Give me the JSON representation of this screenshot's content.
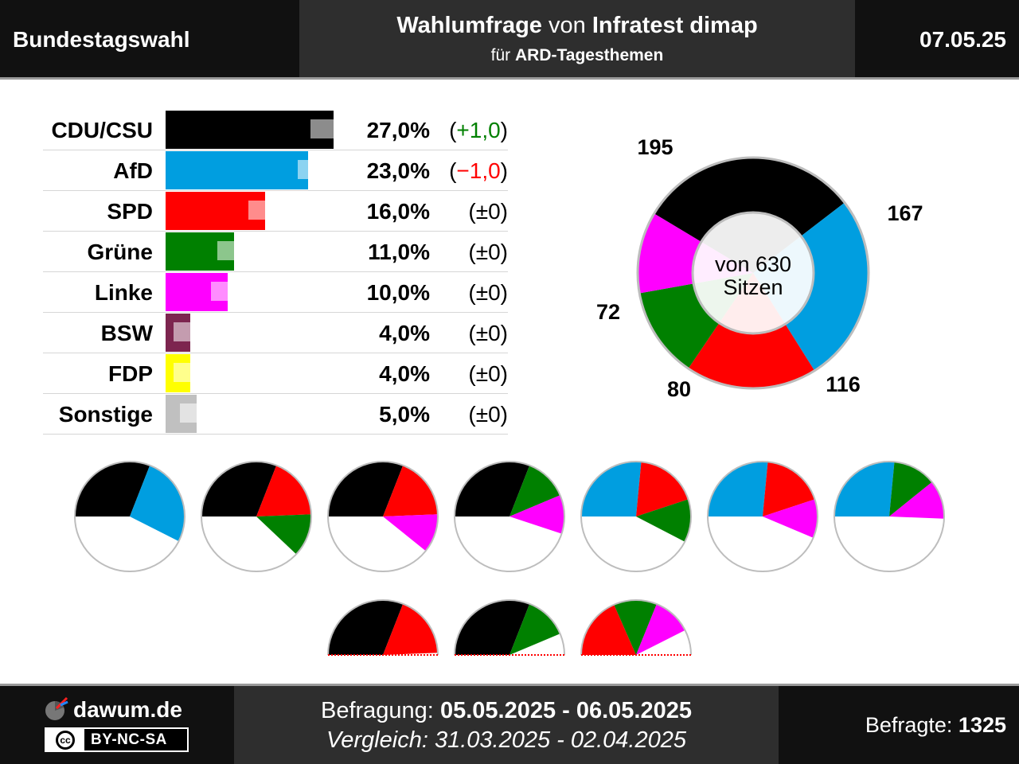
{
  "header": {
    "left_title": "Bundestagswahl",
    "line1_bold1": "Wahlumfrage",
    "line1_normal": "von",
    "line1_bold2": "Infratest dimap",
    "line2_normal": "für",
    "line2_bold": "ARD-Tagesthemen",
    "date": "07.05.25"
  },
  "footer": {
    "brand": "dawum.de",
    "license": "BY-NC-SA",
    "license_cc": "cc",
    "befragung_label": "Befragung:",
    "befragung_value": "05.05.2025 - 06.05.2025",
    "vergleich": "Vergleich: 31.03.2025 - 02.04.2025",
    "befragte_label": "Befragte:",
    "befragte_value": "1325"
  },
  "chart_data": [
    {
      "type": "bar",
      "unit": "%",
      "xlim": [
        0,
        34
      ],
      "parties": [
        {
          "name": "CDU/CSU",
          "value": 27.0,
          "previous": 26.0,
          "label": "27,0%",
          "change": "(+1,0)",
          "change_color": "#008000",
          "color": "#000000"
        },
        {
          "name": "AfD",
          "value": 23.0,
          "previous": 24.0,
          "label": "23,0%",
          "change": "(−1,0)",
          "change_color": "#ff0000",
          "color": "#009ee0"
        },
        {
          "name": "SPD",
          "value": 16.0,
          "previous": 16.0,
          "label": "16,0%",
          "change": "(±0)",
          "change_color": "#000000",
          "color": "#ff0000"
        },
        {
          "name": "Grüne",
          "value": 11.0,
          "previous": 11.0,
          "label": "11,0%",
          "change": "(±0)",
          "change_color": "#000000",
          "color": "#008000"
        },
        {
          "name": "Linke",
          "value": 10.0,
          "previous": 10.0,
          "label": "10,0%",
          "change": "(±0)",
          "change_color": "#000000",
          "color": "#ff00ff"
        },
        {
          "name": "BSW",
          "value": 4.0,
          "previous": 4.0,
          "label": "4,0%",
          "change": "(±0)",
          "change_color": "#000000",
          "color": "#7d254f"
        },
        {
          "name": "FDP",
          "value": 4.0,
          "previous": 4.0,
          "label": "4,0%",
          "change": "(±0)",
          "change_color": "#000000",
          "color": "#ffff00"
        },
        {
          "name": "Sonstige",
          "value": 5.0,
          "previous": 5.0,
          "label": "5,0%",
          "change": "(±0)",
          "change_color": "#000000",
          "color": "#c0c0c0"
        }
      ]
    },
    {
      "type": "pie",
      "center_label_line1": "von 630",
      "center_label_line2": "Sitzen",
      "total_seats": 630,
      "seats": [
        {
          "party": "CDU/CSU",
          "value": 195,
          "color": "#000000"
        },
        {
          "party": "AfD",
          "value": 167,
          "color": "#009ee0"
        },
        {
          "party": "SPD",
          "value": 116,
          "color": "#ff0000"
        },
        {
          "party": "Grüne",
          "value": 80,
          "color": "#008000"
        },
        {
          "party": "Linke",
          "value": 72,
          "color": "#ff00ff"
        }
      ]
    },
    {
      "type": "pie",
      "description_of_set": "coalition half-circle charts (seat shares of 630)",
      "coalitions": [
        {
          "parties": [
            "CDU/CSU",
            "AfD"
          ],
          "seats": [
            195,
            167
          ],
          "colors": [
            "#000000",
            "#009ee0"
          ],
          "majority": true
        },
        {
          "parties": [
            "CDU/CSU",
            "SPD",
            "Grüne"
          ],
          "seats": [
            195,
            116,
            80
          ],
          "colors": [
            "#000000",
            "#ff0000",
            "#008000"
          ],
          "majority": true
        },
        {
          "parties": [
            "CDU/CSU",
            "SPD",
            "Linke"
          ],
          "seats": [
            195,
            116,
            72
          ],
          "colors": [
            "#000000",
            "#ff0000",
            "#ff00ff"
          ],
          "majority": true
        },
        {
          "parties": [
            "CDU/CSU",
            "Grüne",
            "Linke"
          ],
          "seats": [
            195,
            80,
            72
          ],
          "colors": [
            "#000000",
            "#008000",
            "#ff00ff"
          ],
          "majority": true
        },
        {
          "parties": [
            "AfD",
            "SPD",
            "Grüne"
          ],
          "seats": [
            167,
            116,
            80
          ],
          "colors": [
            "#009ee0",
            "#ff0000",
            "#008000"
          ],
          "majority": true
        },
        {
          "parties": [
            "AfD",
            "SPD",
            "Linke"
          ],
          "seats": [
            167,
            116,
            72
          ],
          "colors": [
            "#009ee0",
            "#ff0000",
            "#ff00ff"
          ],
          "majority": true
        },
        {
          "parties": [
            "AfD",
            "Grüne",
            "Linke"
          ],
          "seats": [
            167,
            80,
            72
          ],
          "colors": [
            "#009ee0",
            "#008000",
            "#ff00ff"
          ],
          "majority": true
        },
        {
          "parties": [
            "CDU/CSU",
            "SPD"
          ],
          "seats": [
            195,
            116
          ],
          "colors": [
            "#000000",
            "#ff0000"
          ],
          "majority": false
        },
        {
          "parties": [
            "CDU/CSU",
            "Grüne"
          ],
          "seats": [
            195,
            80
          ],
          "colors": [
            "#000000",
            "#008000"
          ],
          "majority": false
        },
        {
          "parties": [
            "SPD",
            "Grüne",
            "Linke"
          ],
          "seats": [
            116,
            80,
            72
          ],
          "colors": [
            "#ff0000",
            "#008000",
            "#ff00ff"
          ],
          "majority": false
        }
      ]
    }
  ]
}
